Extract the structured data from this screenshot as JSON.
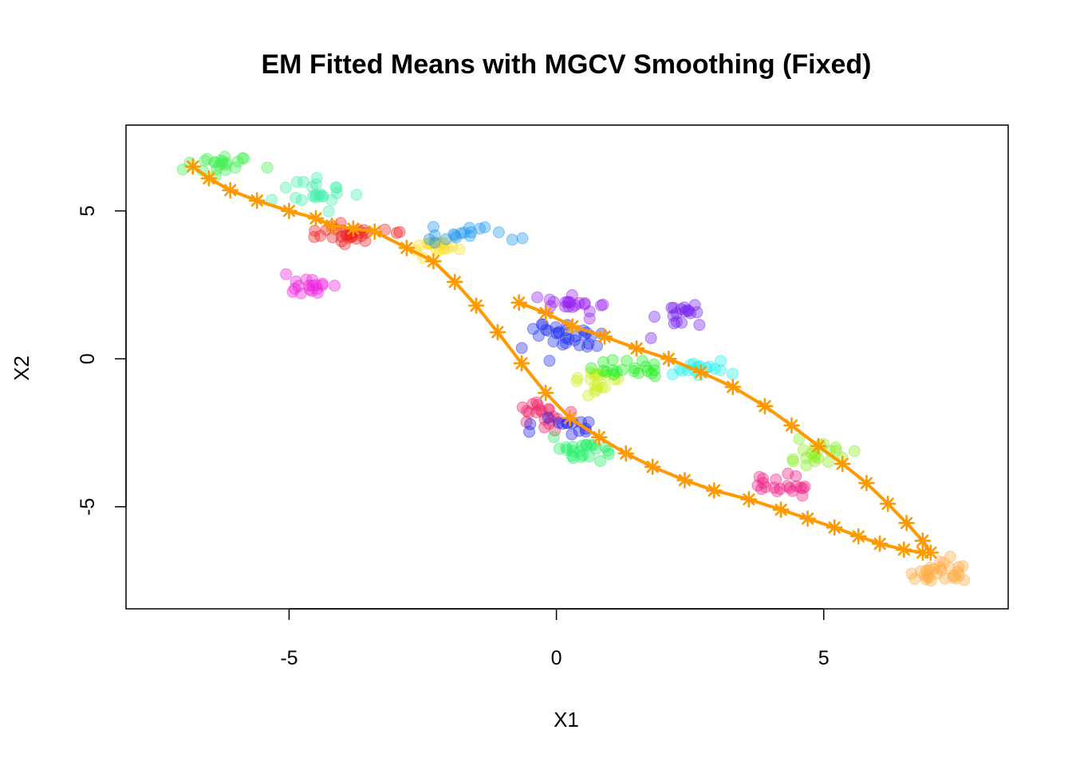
{
  "chart_data": {
    "type": "scatter",
    "title": "EM Fitted Means with MGCV Smoothing (Fixed)",
    "xlabel": "X1",
    "ylabel": "X2",
    "xlim": [
      -8.05,
      8.45
    ],
    "ylim": [
      -8.45,
      7.9
    ],
    "x_ticks": [
      -5,
      0,
      5
    ],
    "x_tick_labels": [
      "-5",
      "0",
      "5"
    ],
    "y_ticks": [
      -5,
      0,
      5
    ],
    "y_tick_labels": [
      "-5",
      "0",
      "5"
    ],
    "grid": false,
    "legend": "none",
    "clusters": [
      {
        "color": "#44ee55",
        "center": [
          -6.3,
          6.6
        ],
        "spread": [
          0.45,
          0.3
        ],
        "n": 22
      },
      {
        "color": "#44eeaa",
        "center": [
          -4.4,
          5.6
        ],
        "spread": [
          0.5,
          0.35
        ],
        "n": 22
      },
      {
        "color": "#ee2222",
        "center": [
          -3.9,
          4.2
        ],
        "spread": [
          0.55,
          0.25
        ],
        "n": 30
      },
      {
        "color": "#ee22dd",
        "center": [
          -4.7,
          2.6
        ],
        "spread": [
          0.4,
          0.3
        ],
        "n": 18
      },
      {
        "color": "#ffdd22",
        "center": [
          -2.2,
          3.9
        ],
        "spread": [
          0.35,
          0.25
        ],
        "n": 18
      },
      {
        "color": "#2299ee",
        "center": [
          -1.6,
          4.2
        ],
        "spread": [
          0.5,
          0.2
        ],
        "n": 18
      },
      {
        "color": "#9922ee",
        "center": [
          0.4,
          1.8
        ],
        "spread": [
          0.5,
          0.3
        ],
        "n": 20
      },
      {
        "color": "#2233ee",
        "center": [
          0.1,
          0.8
        ],
        "spread": [
          0.55,
          0.4
        ],
        "n": 30
      },
      {
        "color": "#7722ee",
        "center": [
          2.3,
          1.4
        ],
        "spread": [
          0.4,
          0.35
        ],
        "n": 18
      },
      {
        "color": "#ccee22",
        "center": [
          0.8,
          -0.7
        ],
        "spread": [
          0.35,
          0.25
        ],
        "n": 18
      },
      {
        "color": "#22ee22",
        "center": [
          1.4,
          -0.4
        ],
        "spread": [
          0.45,
          0.25
        ],
        "n": 20
      },
      {
        "color": "#22eeee",
        "center": [
          2.7,
          -0.3
        ],
        "spread": [
          0.45,
          0.2
        ],
        "n": 16
      },
      {
        "color": "#ee2266",
        "center": [
          -0.3,
          -1.9
        ],
        "spread": [
          0.3,
          0.35
        ],
        "n": 20
      },
      {
        "color": "#2222ee",
        "center": [
          0.0,
          -2.3
        ],
        "spread": [
          0.5,
          0.3
        ],
        "n": 14
      },
      {
        "color": "#22ee66",
        "center": [
          0.4,
          -3.1
        ],
        "spread": [
          0.55,
          0.3
        ],
        "n": 22
      },
      {
        "color": "#88ee22",
        "center": [
          4.9,
          -3.2
        ],
        "spread": [
          0.45,
          0.3
        ],
        "n": 20
      },
      {
        "color": "#ee2288",
        "center": [
          4.2,
          -4.3
        ],
        "spread": [
          0.35,
          0.25
        ],
        "n": 20
      },
      {
        "color": "#ffaa44",
        "center": [
          7.2,
          -7.3
        ],
        "spread": [
          0.45,
          0.35
        ],
        "n": 28
      }
    ],
    "smoothed_path_color": "#ff9900",
    "smoothed_paths": [
      {
        "x": [
          -6.8,
          -6.5,
          -6.1,
          -5.6,
          -5.0,
          -4.5,
          -4.2,
          -3.8,
          -3.4,
          -2.8,
          -2.3,
          -1.9,
          -1.5,
          -1.1,
          -0.65,
          -0.2,
          0.25,
          0.8,
          1.3,
          1.8,
          2.4,
          2.95,
          3.6,
          4.2,
          4.7,
          5.2,
          5.65,
          6.05,
          6.5,
          6.85
        ],
        "y": [
          6.5,
          6.1,
          5.7,
          5.35,
          5.0,
          4.75,
          4.5,
          4.4,
          4.3,
          3.75,
          3.3,
          2.6,
          1.8,
          0.9,
          -0.15,
          -1.15,
          -2.0,
          -2.65,
          -3.2,
          -3.65,
          -4.1,
          -4.45,
          -4.75,
          -5.1,
          -5.4,
          -5.7,
          -6.0,
          -6.25,
          -6.45,
          -6.55
        ]
      },
      {
        "x": [
          -0.7,
          -0.2,
          0.3,
          0.9,
          1.5,
          2.1,
          2.7,
          3.3,
          3.9,
          4.4,
          4.9,
          5.35,
          5.8,
          6.2,
          6.55,
          6.85,
          7.0
        ],
        "y": [
          1.9,
          1.55,
          1.1,
          0.75,
          0.35,
          0.0,
          -0.45,
          -0.95,
          -1.6,
          -2.25,
          -2.95,
          -3.55,
          -4.2,
          -4.9,
          -5.55,
          -6.15,
          -6.55
        ]
      }
    ]
  }
}
